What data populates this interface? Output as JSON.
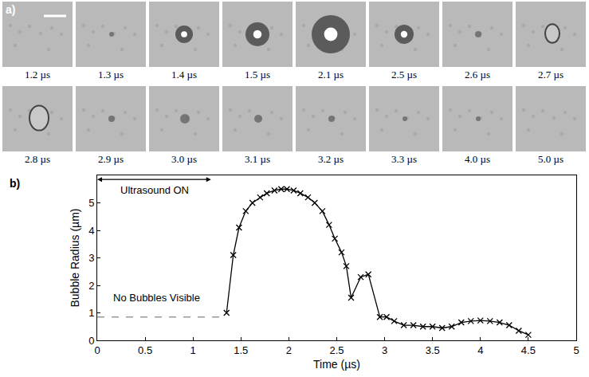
{
  "panel_a": {
    "letter": "a)",
    "frames": [
      "1.2 µs",
      "1.3 µs",
      "1.4 µs",
      "1.5  µs",
      "2.1 µs",
      "2.5 µs",
      "2.6 µs",
      "2.7 µs",
      "2.8 µs",
      "2.9 µs",
      "3.0 µs",
      "3.1 µs",
      "3.2 µs",
      "3.3 µs",
      "4.0 µs",
      "5.0 µs"
    ]
  },
  "chart_data": {
    "type": "line",
    "letter": "b)",
    "x_label": "Time (µs)",
    "y_label": "Bubble Radius (µm)",
    "xlim": [
      0,
      5
    ],
    "xticks": [
      0,
      0.5,
      1,
      1.5,
      2,
      2.5,
      3,
      3.5,
      4,
      4.5,
      5
    ],
    "ylim": [
      0,
      6
    ],
    "yticks": [
      0,
      1,
      2,
      3,
      4,
      5
    ],
    "grid": false,
    "marker": "x",
    "color": "#000000",
    "x": [
      1.35,
      1.42,
      1.48,
      1.55,
      1.62,
      1.7,
      1.77,
      1.85,
      1.92,
      1.98,
      2.05,
      2.12,
      2.2,
      2.27,
      2.35,
      2.42,
      2.48,
      2.55,
      2.6,
      2.65,
      2.75,
      2.83,
      2.95,
      3.02,
      3.1,
      3.2,
      3.3,
      3.4,
      3.5,
      3.6,
      3.7,
      3.8,
      3.9,
      4.0,
      4.1,
      4.2,
      4.3,
      4.4,
      4.5
    ],
    "values": [
      1.0,
      3.1,
      4.1,
      4.7,
      5.0,
      5.2,
      5.35,
      5.45,
      5.5,
      5.5,
      5.45,
      5.35,
      5.2,
      5.0,
      4.7,
      4.2,
      3.7,
      3.2,
      2.7,
      1.55,
      2.3,
      2.4,
      0.85,
      0.85,
      0.7,
      0.55,
      0.55,
      0.5,
      0.5,
      0.45,
      0.5,
      0.65,
      0.7,
      0.72,
      0.7,
      0.65,
      0.55,
      0.35,
      0.2
    ],
    "baseline": {
      "x": [
        0,
        1.3
      ],
      "values": [
        0.85,
        0.85
      ],
      "line_style": "dashed",
      "color": "#999999"
    },
    "annotations": [
      {
        "text": "Ultrasound ON",
        "x": [
          0,
          1.2
        ],
        "y": 5.85
      },
      {
        "text": "No Bubbles Visible",
        "x": 0.62,
        "y": 1.55
      }
    ]
  }
}
